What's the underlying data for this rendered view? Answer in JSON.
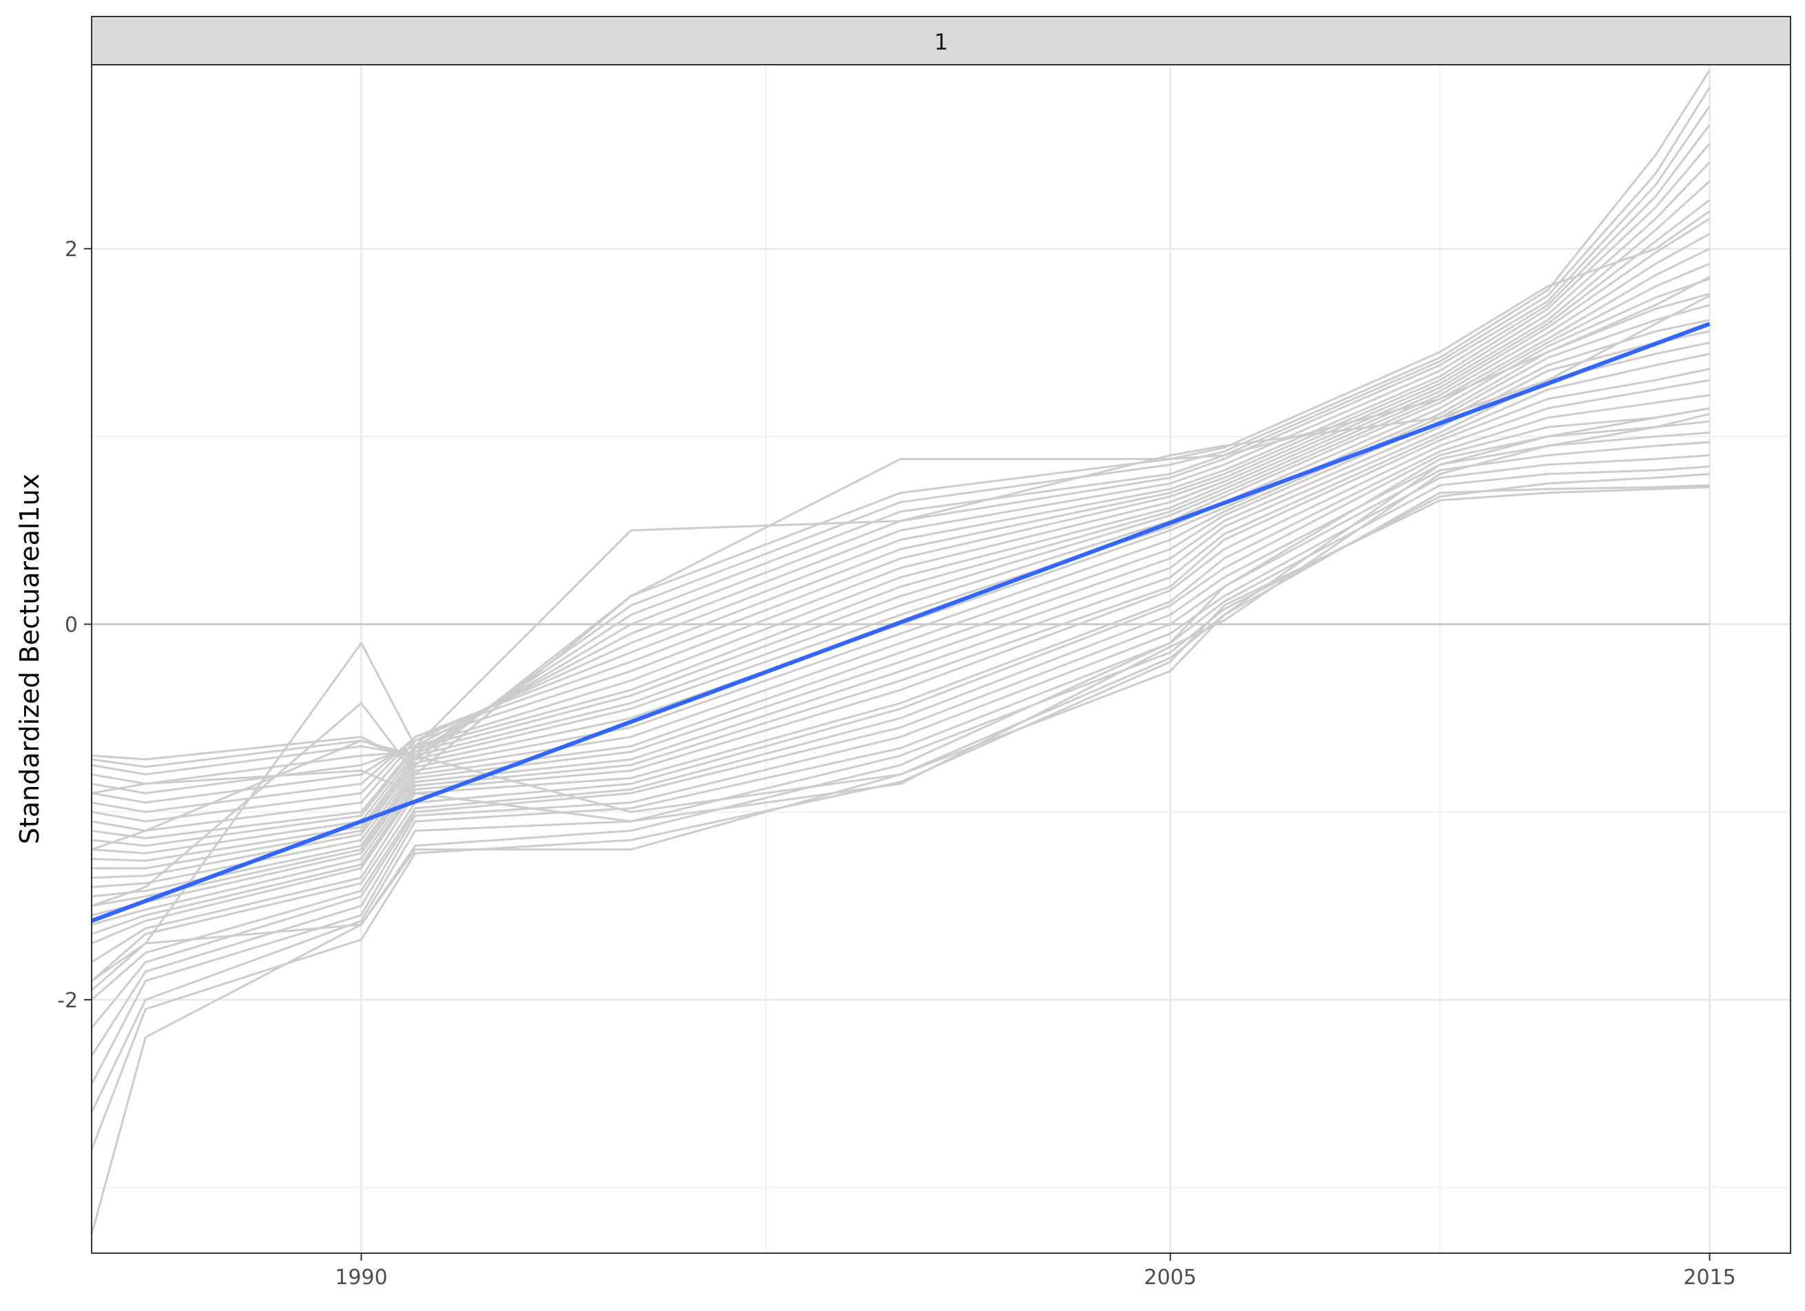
{
  "chart_data": {
    "type": "line",
    "facet_strip": "1",
    "xlabel": "",
    "ylabel": "Standardized Bectuareal1ux",
    "x_ticks": [
      1990,
      2005,
      2015
    ],
    "y_ticks": [
      -2,
      0,
      2
    ],
    "y_tick_labels": [
      "-2",
      "0",
      "2"
    ],
    "xlim": [
      1985.0,
      2016.5
    ],
    "ylim": [
      -3.35,
      2.98
    ],
    "grid": true,
    "legend": "none",
    "x": [
      1985,
      1986,
      1990,
      1991,
      1995,
      2000,
      2005,
      2006,
      2010,
      2012,
      2014,
      2015
    ],
    "series": [
      {
        "values": [
          -3.25,
          -2.2,
          -1.6,
          -1.2,
          -1.2,
          -0.8,
          -0.25,
          0.05,
          0.7,
          0.72,
          0.73,
          0.74
        ]
      },
      {
        "values": [
          -2.8,
          -2.05,
          -1.68,
          -1.22,
          -1.15,
          -0.84,
          -0.2,
          0.1,
          0.66,
          0.7,
          0.72,
          0.73
        ]
      },
      {
        "values": [
          -2.6,
          -2.0,
          -1.58,
          -1.1,
          -1.05,
          -0.7,
          -0.15,
          0.08,
          0.68,
          0.75,
          0.78,
          0.8
        ]
      },
      {
        "values": [
          -2.45,
          -1.9,
          -1.55,
          -1.05,
          -0.98,
          -0.66,
          -0.1,
          0.12,
          0.74,
          0.8,
          0.82,
          0.84
        ]
      },
      {
        "values": [
          -2.3,
          -1.85,
          -1.5,
          -1.02,
          -0.95,
          -0.6,
          -0.05,
          0.15,
          0.78,
          0.85,
          0.88,
          0.9
        ]
      },
      {
        "values": [
          -2.15,
          -1.8,
          -1.45,
          -1.0,
          -0.9,
          -0.55,
          0.0,
          0.2,
          0.82,
          0.9,
          0.95,
          0.97
        ]
      },
      {
        "values": [
          -2.0,
          -1.75,
          -1.42,
          -0.98,
          -0.88,
          -0.5,
          0.05,
          0.25,
          0.85,
          0.95,
          1.0,
          1.02
        ]
      },
      {
        "values": [
          -1.95,
          -1.7,
          -1.6,
          -1.18,
          -1.1,
          -0.75,
          -0.1,
          0.2,
          0.88,
          1.0,
          1.05,
          1.08
        ]
      },
      {
        "values": [
          -1.9,
          -1.65,
          -1.38,
          -0.95,
          -0.85,
          -0.45,
          0.1,
          0.3,
          0.9,
          1.05,
          1.1,
          1.15
        ]
      },
      {
        "values": [
          -1.8,
          -1.62,
          -1.35,
          -0.9,
          -0.82,
          -0.42,
          0.12,
          0.35,
          0.92,
          1.1,
          1.18,
          1.22
        ]
      },
      {
        "values": [
          -1.7,
          -1.58,
          -1.3,
          -0.88,
          -0.78,
          -0.35,
          0.18,
          0.4,
          0.95,
          1.15,
          1.25,
          1.3
        ]
      },
      {
        "values": [
          -1.65,
          -1.55,
          -1.28,
          -0.86,
          -0.75,
          -0.3,
          0.2,
          0.45,
          0.98,
          1.2,
          1.3,
          1.36
        ]
      },
      {
        "values": [
          -1.6,
          -1.52,
          -1.25,
          -0.84,
          -0.72,
          -0.25,
          0.25,
          0.48,
          1.0,
          1.25,
          1.38,
          1.44
        ]
      },
      {
        "values": [
          -1.55,
          -1.48,
          -1.22,
          -0.82,
          -0.68,
          -0.2,
          0.3,
          0.52,
          1.02,
          1.3,
          1.44,
          1.5
        ]
      },
      {
        "values": [
          -1.5,
          -1.45,
          -1.2,
          -0.8,
          -0.65,
          -0.15,
          0.35,
          0.55,
          1.05,
          1.35,
          1.5,
          1.56
        ]
      },
      {
        "values": [
          -1.45,
          -1.42,
          -1.18,
          -0.78,
          -0.6,
          -0.1,
          0.4,
          0.58,
          1.08,
          1.38,
          1.56,
          1.62
        ]
      },
      {
        "values": [
          -1.4,
          -1.38,
          -1.15,
          -0.76,
          -0.55,
          -0.05,
          0.45,
          0.6,
          1.1,
          1.42,
          1.62,
          1.7
        ]
      },
      {
        "values": [
          -1.35,
          -1.34,
          -1.12,
          -0.74,
          -0.5,
          0.0,
          0.5,
          0.62,
          1.12,
          1.45,
          1.68,
          1.76
        ]
      },
      {
        "values": [
          -1.3,
          -1.3,
          -1.1,
          -0.72,
          -0.45,
          0.05,
          0.52,
          0.65,
          1.15,
          1.48,
          1.74,
          1.84
        ]
      },
      {
        "values": [
          -1.25,
          -1.26,
          -1.08,
          -0.7,
          -0.42,
          0.1,
          0.55,
          0.68,
          1.18,
          1.5,
          1.8,
          1.92
        ]
      },
      {
        "values": [
          -1.2,
          -1.22,
          -1.05,
          -0.68,
          -0.38,
          0.15,
          0.58,
          0.7,
          1.2,
          1.52,
          1.86,
          2.0
        ]
      },
      {
        "values": [
          -1.15,
          -1.18,
          -1.02,
          -0.66,
          -0.35,
          0.2,
          0.6,
          0.72,
          1.22,
          1.55,
          1.92,
          2.08
        ]
      },
      {
        "values": [
          -1.1,
          -1.14,
          -1.0,
          -0.65,
          -0.3,
          0.25,
          0.62,
          0.74,
          1.24,
          1.58,
          1.98,
          2.16
        ]
      },
      {
        "values": [
          -1.05,
          -1.1,
          -0.95,
          -0.62,
          -0.25,
          0.3,
          0.65,
          0.76,
          1.26,
          1.6,
          2.04,
          2.26
        ]
      },
      {
        "values": [
          -1.0,
          -1.05,
          -0.9,
          -0.6,
          -0.2,
          0.35,
          0.68,
          0.78,
          1.28,
          1.62,
          2.1,
          2.36
        ]
      },
      {
        "values": [
          -0.95,
          -1.0,
          -0.85,
          -0.6,
          -0.15,
          0.4,
          0.7,
          0.8,
          1.3,
          1.65,
          2.16,
          2.46
        ]
      },
      {
        "values": [
          -0.9,
          -0.95,
          -0.8,
          -0.62,
          -0.1,
          0.45,
          0.72,
          0.82,
          1.32,
          1.68,
          2.22,
          2.56
        ]
      },
      {
        "values": [
          -0.85,
          -0.9,
          -0.75,
          -0.65,
          -0.05,
          0.5,
          0.75,
          0.85,
          1.35,
          1.7,
          2.28,
          2.66
        ]
      },
      {
        "values": [
          -0.8,
          -0.85,
          -0.7,
          -0.68,
          0.0,
          0.55,
          0.78,
          0.88,
          1.38,
          1.72,
          2.34,
          2.76
        ]
      },
      {
        "values": [
          -0.75,
          -0.8,
          -0.65,
          -0.7,
          0.05,
          0.6,
          0.8,
          0.9,
          1.4,
          1.75,
          2.4,
          2.86
        ]
      },
      {
        "values": [
          -0.72,
          -0.76,
          -0.62,
          -0.72,
          0.1,
          0.65,
          0.85,
          0.92,
          1.42,
          1.78,
          2.5,
          2.95
        ]
      },
      {
        "values": [
          -0.7,
          -0.72,
          -0.6,
          -0.75,
          0.15,
          0.7,
          0.88,
          0.94,
          1.45,
          1.8,
          2.0,
          2.2
        ]
      },
      {
        "values": [
          -1.9,
          -1.7,
          -0.1,
          -0.65,
          0.5,
          0.55,
          0.9,
          0.95,
          1.1,
          1.3,
          1.6,
          1.75
        ]
      },
      {
        "values": [
          -1.5,
          -1.4,
          -0.42,
          -0.8,
          0.15,
          0.88,
          0.88,
          0.9,
          1.2,
          1.45,
          1.7,
          1.85
        ]
      },
      {
        "values": [
          -1.2,
          -1.1,
          -0.62,
          -0.7,
          -1.0,
          -0.8,
          -0.18,
          0.05,
          0.85,
          1.0,
          1.1,
          1.15
        ]
      },
      {
        "values": [
          -0.9,
          -0.85,
          -0.78,
          -0.9,
          -1.05,
          -0.85,
          -0.12,
          0.02,
          0.8,
          0.95,
          1.05,
          1.12
        ]
      },
      {
        "values": [
          0,
          0,
          0,
          0,
          0,
          0,
          0,
          0,
          0,
          0,
          0,
          0
        ]
      }
    ],
    "trend": {
      "x": [
        1985,
        2015
      ],
      "values": [
        -1.58,
        1.6
      ],
      "color": "#3366ff"
    },
    "line_color": "#cccccc"
  }
}
